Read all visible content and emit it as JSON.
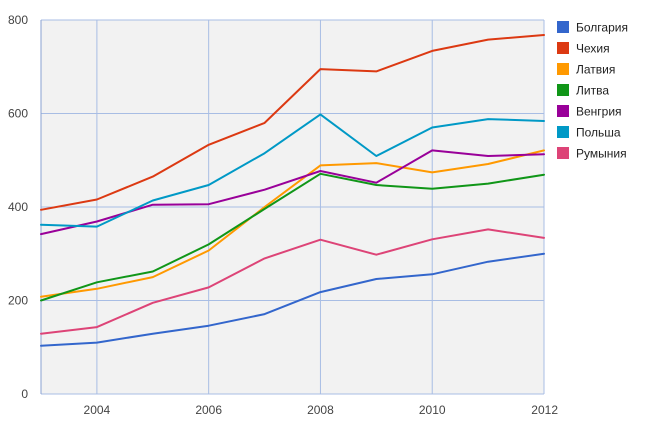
{
  "chart_data": {
    "type": "line",
    "title": "",
    "xlabel": "",
    "ylabel": "",
    "x": [
      2003,
      2004,
      2005,
      2006,
      2007,
      2008,
      2009,
      2010,
      2011,
      2012
    ],
    "xlim": [
      2003,
      2012
    ],
    "ylim": [
      0,
      800
    ],
    "x_ticks": [
      "2004",
      "2006",
      "2008",
      "2010",
      "2012"
    ],
    "y_ticks": [
      "0",
      "200",
      "400",
      "600",
      "800"
    ],
    "grid": true,
    "legend_position": "right",
    "plot_background": "#f2f2f2",
    "series": [
      {
        "name": "Болгария",
        "color": "#3366cc",
        "values": [
          103,
          110,
          129,
          146,
          171,
          218,
          246,
          256,
          283,
          300
        ]
      },
      {
        "name": "Чехия",
        "color": "#dc3912",
        "values": [
          394,
          416,
          465,
          533,
          580,
          695,
          690,
          734,
          758,
          768
        ]
      },
      {
        "name": "Латвия",
        "color": "#ff9900",
        "values": [
          208,
          225,
          250,
          307,
          400,
          489,
          494,
          474,
          492,
          521
        ]
      },
      {
        "name": "Литва",
        "color": "#109618",
        "values": [
          200,
          239,
          262,
          320,
          396,
          471,
          447,
          439,
          450,
          469
        ]
      },
      {
        "name": "Венгрия",
        "color": "#990099",
        "values": [
          342,
          369,
          405,
          406,
          437,
          477,
          452,
          521,
          509,
          513
        ]
      },
      {
        "name": "Польша",
        "color": "#0099c6",
        "values": [
          362,
          358,
          414,
          447,
          515,
          598,
          509,
          570,
          588,
          584
        ]
      },
      {
        "name": "Румыния",
        "color": "#dd4477",
        "values": [
          129,
          143,
          195,
          228,
          290,
          330,
          298,
          331,
          352,
          334
        ]
      }
    ]
  }
}
